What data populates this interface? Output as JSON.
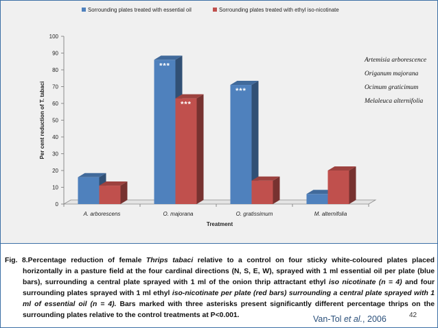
{
  "chart_data": {
    "type": "bar",
    "style": "3d-clustered-column",
    "categories": [
      "A. arborescens",
      "O. majorana",
      "O. gratissimum",
      "M. alternifolia"
    ],
    "series": [
      {
        "name": "Sorrounding plates treated with essential oil",
        "color": "#4f81bd",
        "values": [
          16,
          86,
          71,
          6
        ]
      },
      {
        "name": "Sorrounding plates treated with ethyl iso-nicotinate",
        "color": "#c0504d",
        "values": [
          11,
          63,
          14,
          20
        ]
      }
    ],
    "significance": [
      {
        "series": 0,
        "category": 1,
        "label": "***"
      },
      {
        "series": 1,
        "category": 1,
        "label": "***"
      },
      {
        "series": 0,
        "category": 2,
        "label": "***"
      }
    ],
    "xlabel": "Treatment",
    "ylabel": "Per cent reduction of T. tabaci",
    "ylim": [
      0,
      100
    ],
    "yticks": [
      0,
      10,
      20,
      30,
      40,
      50,
      60,
      70,
      80,
      90,
      100
    ],
    "legend_position": "top",
    "grid": false
  },
  "species_list": [
    "Artemisia arborescence",
    "Origanum majorana",
    "Ocimum graticimum",
    "Melaleuca alternifolia"
  ],
  "caption": {
    "fig_label": "Fig. 8.",
    "p1": "Percentage reduction of female ",
    "p2": "Thrips tabaci",
    "p3": " relative to a control on four sticky white-coloured plates placed horizontally in a pasture field at the four cardinal directions (N, S, E, W), sprayed with 1 ml essential oil per plate (blue bars), surrounding a central plate sprayed with 1 ml of the onion thrip attractant ethyl ",
    "p4": "iso nicotinate (n = 4)",
    "p5": " and four surrounding plates sprayed with 1 ml ethyl ",
    "p6": "iso-nicotinate per plate (red bars) surrounding a central plate sprayed with 1 ml of essential oil (n = 4).",
    "p7": " Bars marked with three asterisks present significantly different percentage thrips on the surrounding plates relative to the control treatments at P<0.001."
  },
  "credit": {
    "authors": "Van-Tol ",
    "etal": "et al.",
    "year": ", 2006"
  },
  "page_number": "42"
}
